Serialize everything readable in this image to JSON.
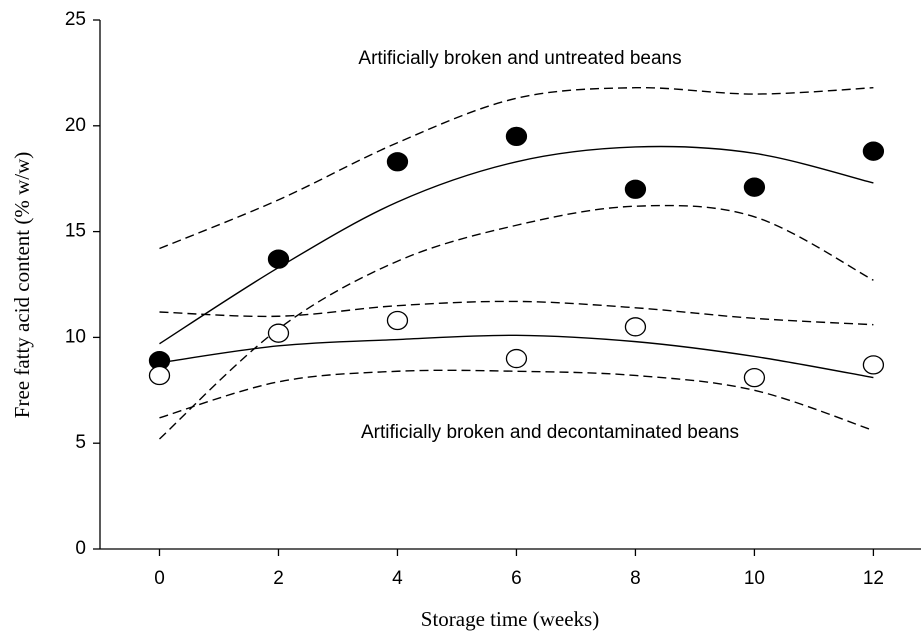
{
  "chart_data": {
    "type": "scatter",
    "xlabel": "Storage time (weeks)",
    "ylabel": "Free fatty acid content (% w/w)",
    "annotations": [
      "Artificially broken and untreated beans",
      "Artificially broken and decontaminated beans"
    ],
    "xlim": [
      -1,
      12.8
    ],
    "ylim": [
      0,
      25
    ],
    "xticks": [
      0,
      2,
      4,
      6,
      8,
      10,
      12
    ],
    "yticks": [
      0,
      5,
      10,
      15,
      20,
      25
    ],
    "x": [
      0,
      2,
      4,
      6,
      8,
      10,
      12
    ],
    "series": [
      {
        "marker": "filled",
        "color": "#000000",
        "values": [
          8.9,
          13.7,
          18.3,
          19.5,
          17.0,
          17.1,
          18.8
        ]
      },
      {
        "marker": "open",
        "color": "#000000",
        "values": [
          8.2,
          10.2,
          10.8,
          9.0,
          10.5,
          8.1,
          8.7
        ]
      }
    ],
    "lines": [
      {
        "style": "solid",
        "color": "#000000",
        "values": [
          9.7,
          13.3,
          16.4,
          18.3,
          19.0,
          18.7,
          17.3
        ]
      },
      {
        "style": "dashed",
        "color": "#000000",
        "values": [
          14.2,
          16.5,
          19.2,
          21.3,
          21.8,
          21.5,
          21.8
        ]
      },
      {
        "style": "dashed",
        "color": "#000000",
        "values": [
          5.2,
          10.4,
          13.6,
          15.3,
          16.2,
          15.7,
          12.7
        ]
      },
      {
        "style": "solid",
        "color": "#000000",
        "values": [
          8.8,
          9.6,
          9.9,
          10.1,
          9.8,
          9.1,
          8.1
        ]
      },
      {
        "style": "dashed",
        "color": "#000000",
        "values": [
          11.2,
          11.0,
          11.5,
          11.7,
          11.4,
          10.9,
          10.6
        ]
      },
      {
        "style": "dashed",
        "color": "#000000",
        "values": [
          6.2,
          7.9,
          8.4,
          8.4,
          8.2,
          7.5,
          5.6
        ]
      }
    ]
  }
}
